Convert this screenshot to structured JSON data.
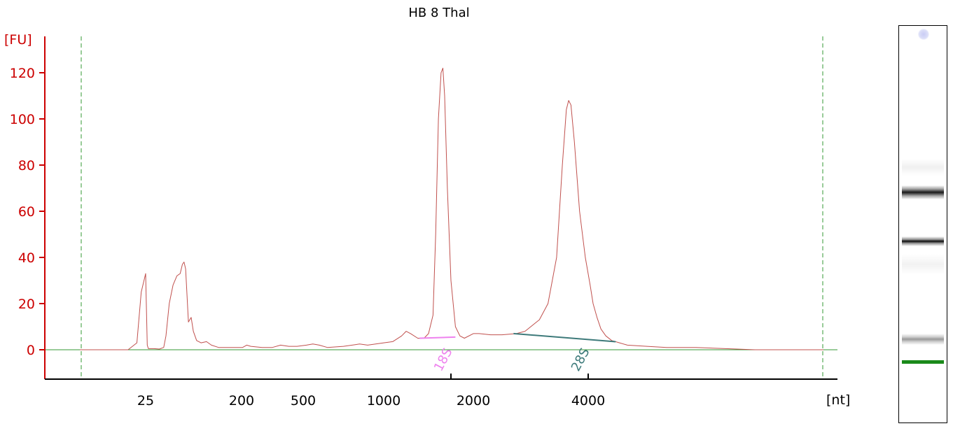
{
  "chart_data": {
    "type": "line",
    "title": "HB 8 Thal",
    "ylabel": "[FU]",
    "xlabel": "[nt]",
    "ylim": [
      -12,
      135
    ],
    "yticks": [
      0,
      20,
      40,
      60,
      80,
      100,
      120
    ],
    "xticks": [
      {
        "label": "25",
        "value": 25
      },
      {
        "label": "200",
        "value": 200
      },
      {
        "label": "500",
        "value": 500
      },
      {
        "label": "1000",
        "value": 1000
      },
      {
        "label": "2000",
        "value": 2000
      },
      {
        "label": "4000",
        "value": 4000
      }
    ],
    "grid": false,
    "series": [
      {
        "color": "#c0504d",
        "points": [
          [
            10,
            0
          ],
          [
            21,
            0
          ],
          [
            23,
            3
          ],
          [
            24,
            25
          ],
          [
            25,
            33
          ],
          [
            26,
            22
          ],
          [
            28,
            2
          ],
          [
            30,
            0.5
          ],
          [
            40,
            0.5
          ],
          [
            50,
            0.3
          ],
          [
            58,
            1
          ],
          [
            62,
            6
          ],
          [
            68,
            20
          ],
          [
            75,
            28
          ],
          [
            82,
            32
          ],
          [
            88,
            33
          ],
          [
            92,
            37
          ],
          [
            95,
            38
          ],
          [
            98,
            35
          ],
          [
            103,
            12
          ],
          [
            108,
            14
          ],
          [
            112,
            8
          ],
          [
            118,
            4
          ],
          [
            126,
            3
          ],
          [
            136,
            3.5
          ],
          [
            145,
            2
          ],
          [
            158,
            1
          ],
          [
            185,
            1
          ],
          [
            205,
            1
          ],
          [
            225,
            2
          ],
          [
            245,
            1.5
          ],
          [
            300,
            1
          ],
          [
            350,
            1
          ],
          [
            390,
            2
          ],
          [
            430,
            1.5
          ],
          [
            470,
            1.5
          ],
          [
            520,
            2
          ],
          [
            560,
            2.5
          ],
          [
            600,
            2
          ],
          [
            650,
            1
          ],
          [
            750,
            1.5
          ],
          [
            850,
            2.5
          ],
          [
            900,
            2
          ],
          [
            1000,
            3
          ],
          [
            1100,
            3.5
          ],
          [
            1200,
            6
          ],
          [
            1250,
            8
          ],
          [
            1300,
            7
          ],
          [
            1380,
            5
          ],
          [
            1450,
            5
          ],
          [
            1500,
            7
          ],
          [
            1550,
            15
          ],
          [
            1580,
            50
          ],
          [
            1610,
            100
          ],
          [
            1640,
            120
          ],
          [
            1660,
            122
          ],
          [
            1680,
            110
          ],
          [
            1710,
            70
          ],
          [
            1750,
            30
          ],
          [
            1800,
            10
          ],
          [
            1850,
            6
          ],
          [
            1900,
            5
          ],
          [
            2000,
            7
          ],
          [
            2100,
            7
          ],
          [
            2300,
            6.5
          ],
          [
            2500,
            6.5
          ],
          [
            2750,
            7
          ],
          [
            2900,
            8
          ],
          [
            3000,
            10
          ],
          [
            3150,
            13
          ],
          [
            3300,
            20
          ],
          [
            3450,
            40
          ],
          [
            3550,
            80
          ],
          [
            3620,
            104
          ],
          [
            3660,
            108
          ],
          [
            3700,
            106
          ],
          [
            3760,
            90
          ],
          [
            3850,
            60
          ],
          [
            3950,
            40
          ],
          [
            4100,
            28
          ],
          [
            4250,
            20
          ],
          [
            4450,
            14
          ],
          [
            4650,
            9
          ],
          [
            4900,
            6
          ],
          [
            5200,
            4
          ],
          [
            5600,
            3
          ],
          [
            6000,
            2
          ],
          [
            7000,
            1.5
          ],
          [
            8000,
            1
          ],
          [
            9500,
            1
          ],
          [
            11000,
            0.5
          ],
          [
            12500,
            0
          ],
          [
            16000,
            0
          ]
        ]
      }
    ],
    "baselines": [
      {
        "name": "18S",
        "from": [
          1400,
          5
        ],
        "to": [
          1800,
          5.5
        ],
        "color": "#ee82ee"
      },
      {
        "name": "28S",
        "from": [
          2700,
          7
        ],
        "to": [
          5400,
          3.5
        ],
        "color": "#3d7a7a"
      }
    ],
    "markers": [
      {
        "name": "18S",
        "x": 1750
      },
      {
        "name": "28S",
        "x": 4000
      }
    ],
    "colors": {
      "axis": "#cc0000",
      "xaxis": "#000000",
      "trace": "#c0504d",
      "zero_line": "#339933",
      "dashed_limit": "#339933"
    }
  },
  "gel": {
    "marker_color": "#1a8a1a"
  }
}
